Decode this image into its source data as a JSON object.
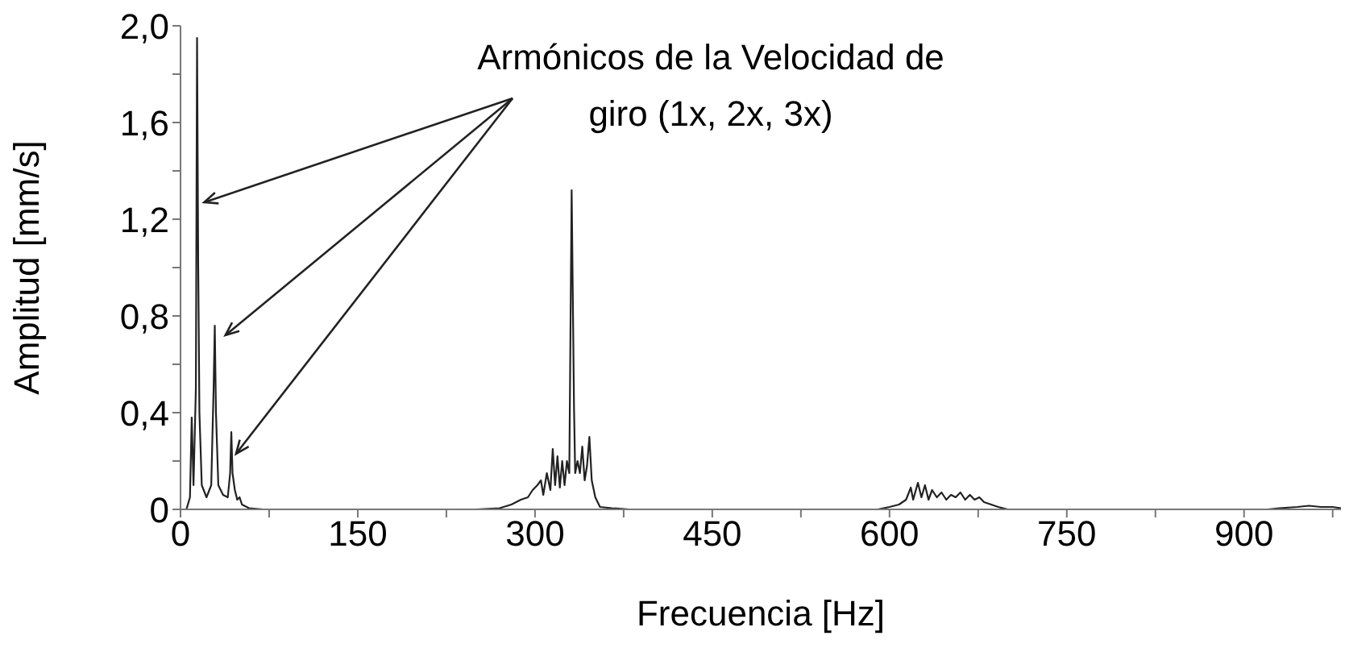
{
  "chart_data": {
    "type": "line",
    "xlabel": "Frecuencia [Hz]",
    "ylabel": "Amplitud [mm/s]",
    "annotations": [
      {
        "text": "Armónicos de la Velocidad de giro (1x, 2x, 3x)",
        "x": 20,
        "y": 1.27
      }
    ],
    "xlim": [
      0,
      982
    ],
    "xticks": [
      0,
      {
        "value": 75,
        "label": null
      },
      150,
      {
        "value": 225,
        "label": null
      },
      300,
      {
        "value": 375,
        "label": null
      },
      450,
      {
        "value": 525,
        "label": null
      },
      600,
      {
        "value": 675,
        "label": null
      },
      750,
      {
        "value": 825,
        "label": null
      },
      900,
      {
        "value": 975,
        "label": null
      }
    ],
    "ylim": [
      0,
      2
    ],
    "yticks": [
      0,
      {
        "value": 0.2,
        "label": null
      },
      {
        "value": 0.4,
        "label": "0,4"
      },
      {
        "value": 0.6,
        "label": null
      },
      {
        "value": 0.8,
        "label": "0,8"
      },
      {
        "value": 1.0,
        "label": null
      },
      {
        "value": 1.2,
        "label": "1,2"
      },
      {
        "value": 1.4,
        "label": null
      },
      {
        "value": 1.6,
        "label": "1,6"
      },
      {
        "value": 1.8,
        "label": null
      },
      {
        "value": 2.0,
        "label": "2,0"
      }
    ],
    "grid": false,
    "marker": "none",
    "line_style": "solid",
    "series": [
      {
        "color": "#222222",
        "x": [
          0,
          5,
          8,
          9.5,
          11,
          13,
          14,
          15,
          16,
          18,
          22,
          26,
          28,
          29,
          30,
          32,
          36,
          40,
          42,
          43,
          44,
          46,
          48,
          50,
          52,
          58,
          70,
          250,
          270,
          280,
          288,
          294,
          298,
          302,
          305,
          307,
          310,
          313,
          315,
          317,
          319,
          321,
          323,
          325,
          327,
          329,
          331,
          333,
          334,
          336,
          338,
          340,
          342,
          344,
          346,
          348,
          351,
          355,
          365,
          380,
          590,
          600,
          608,
          614,
          618,
          620,
          624,
          627,
          630,
          633,
          636,
          640,
          644,
          648,
          652,
          656,
          660,
          664,
          668,
          672,
          676,
          680,
          686,
          692,
          700,
          920,
          930,
          945,
          955,
          965,
          975,
          982
        ],
        "values": [
          0,
          0,
          0.05,
          0.38,
          0.1,
          0.5,
          1.95,
          1.0,
          0.4,
          0.1,
          0.05,
          0.1,
          0.5,
          0.76,
          0.4,
          0.1,
          0.06,
          0.05,
          0.15,
          0.32,
          0.15,
          0.08,
          0.04,
          0.05,
          0.02,
          0.005,
          0,
          0,
          0.005,
          0.02,
          0.04,
          0.05,
          0.08,
          0.1,
          0.12,
          0.06,
          0.15,
          0.08,
          0.25,
          0.1,
          0.22,
          0.09,
          0.2,
          0.1,
          0.2,
          0.15,
          1.32,
          0.42,
          0.15,
          0.2,
          0.15,
          0.26,
          0.12,
          0.18,
          0.3,
          0.12,
          0.05,
          0.01,
          0.005,
          0,
          0,
          0.01,
          0.02,
          0.04,
          0.09,
          0.04,
          0.11,
          0.05,
          0.1,
          0.04,
          0.08,
          0.05,
          0.07,
          0.04,
          0.06,
          0.05,
          0.07,
          0.04,
          0.06,
          0.04,
          0.05,
          0.03,
          0.02,
          0.01,
          0,
          0,
          0.005,
          0.01,
          0.015,
          0.01,
          0.01,
          0.005
        ]
      }
    ]
  }
}
